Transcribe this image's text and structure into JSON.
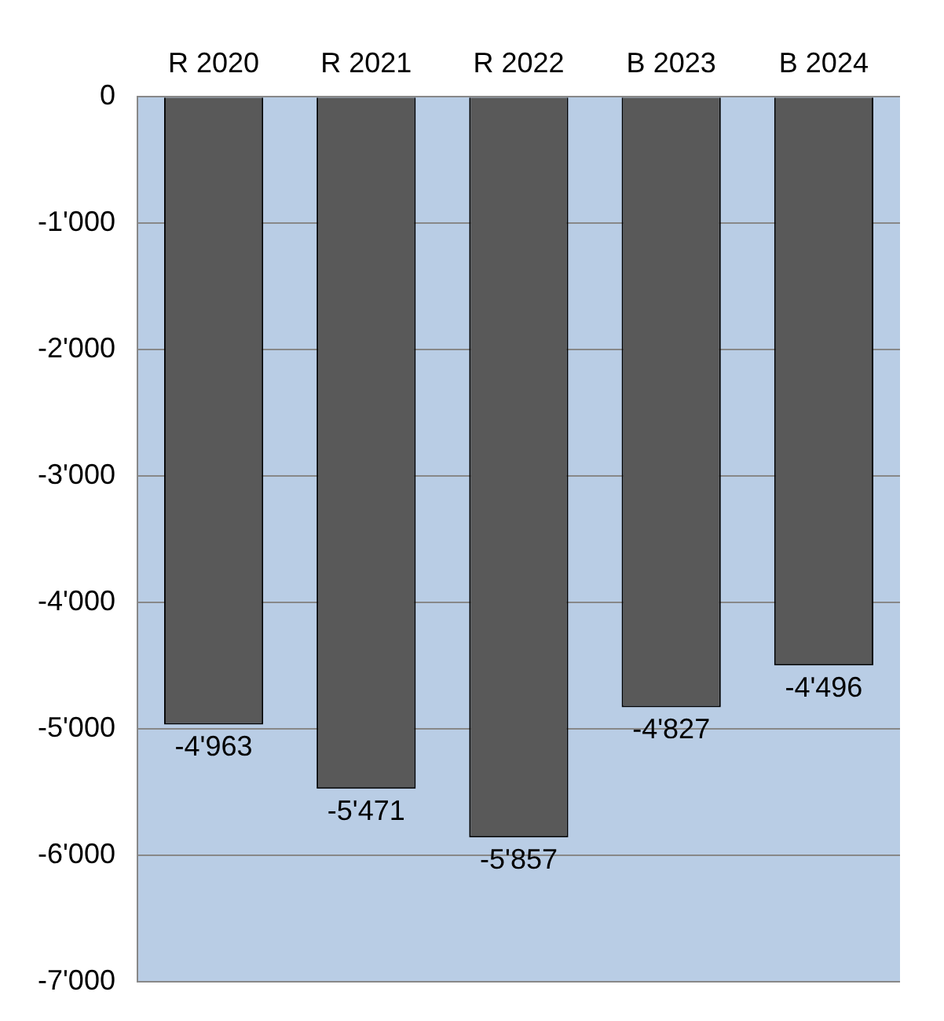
{
  "chart_data": {
    "type": "bar",
    "categories": [
      "R 2020",
      "R 2021",
      "R 2022",
      "B 2023",
      "B 2024"
    ],
    "values": [
      -4963,
      -5471,
      -5857,
      -4827,
      -4496
    ],
    "value_labels": [
      "-4'963",
      "-5'471",
      "-5'857",
      "-4'827",
      "-4'496"
    ],
    "color": "#595959",
    "ylim": [
      -7000,
      0
    ],
    "yticks": [
      {
        "value": 0,
        "label": "0"
      },
      {
        "value": -1000,
        "label": "-1'000"
      },
      {
        "value": -2000,
        "label": "-2'000"
      },
      {
        "value": -3000,
        "label": "-3'000"
      },
      {
        "value": -4000,
        "label": "-4'000"
      },
      {
        "value": -5000,
        "label": "-5'000"
      },
      {
        "value": -6000,
        "label": "-6'000"
      },
      {
        "value": -7000,
        "label": "-7'000"
      }
    ],
    "grid": "y",
    "legend": false
  }
}
